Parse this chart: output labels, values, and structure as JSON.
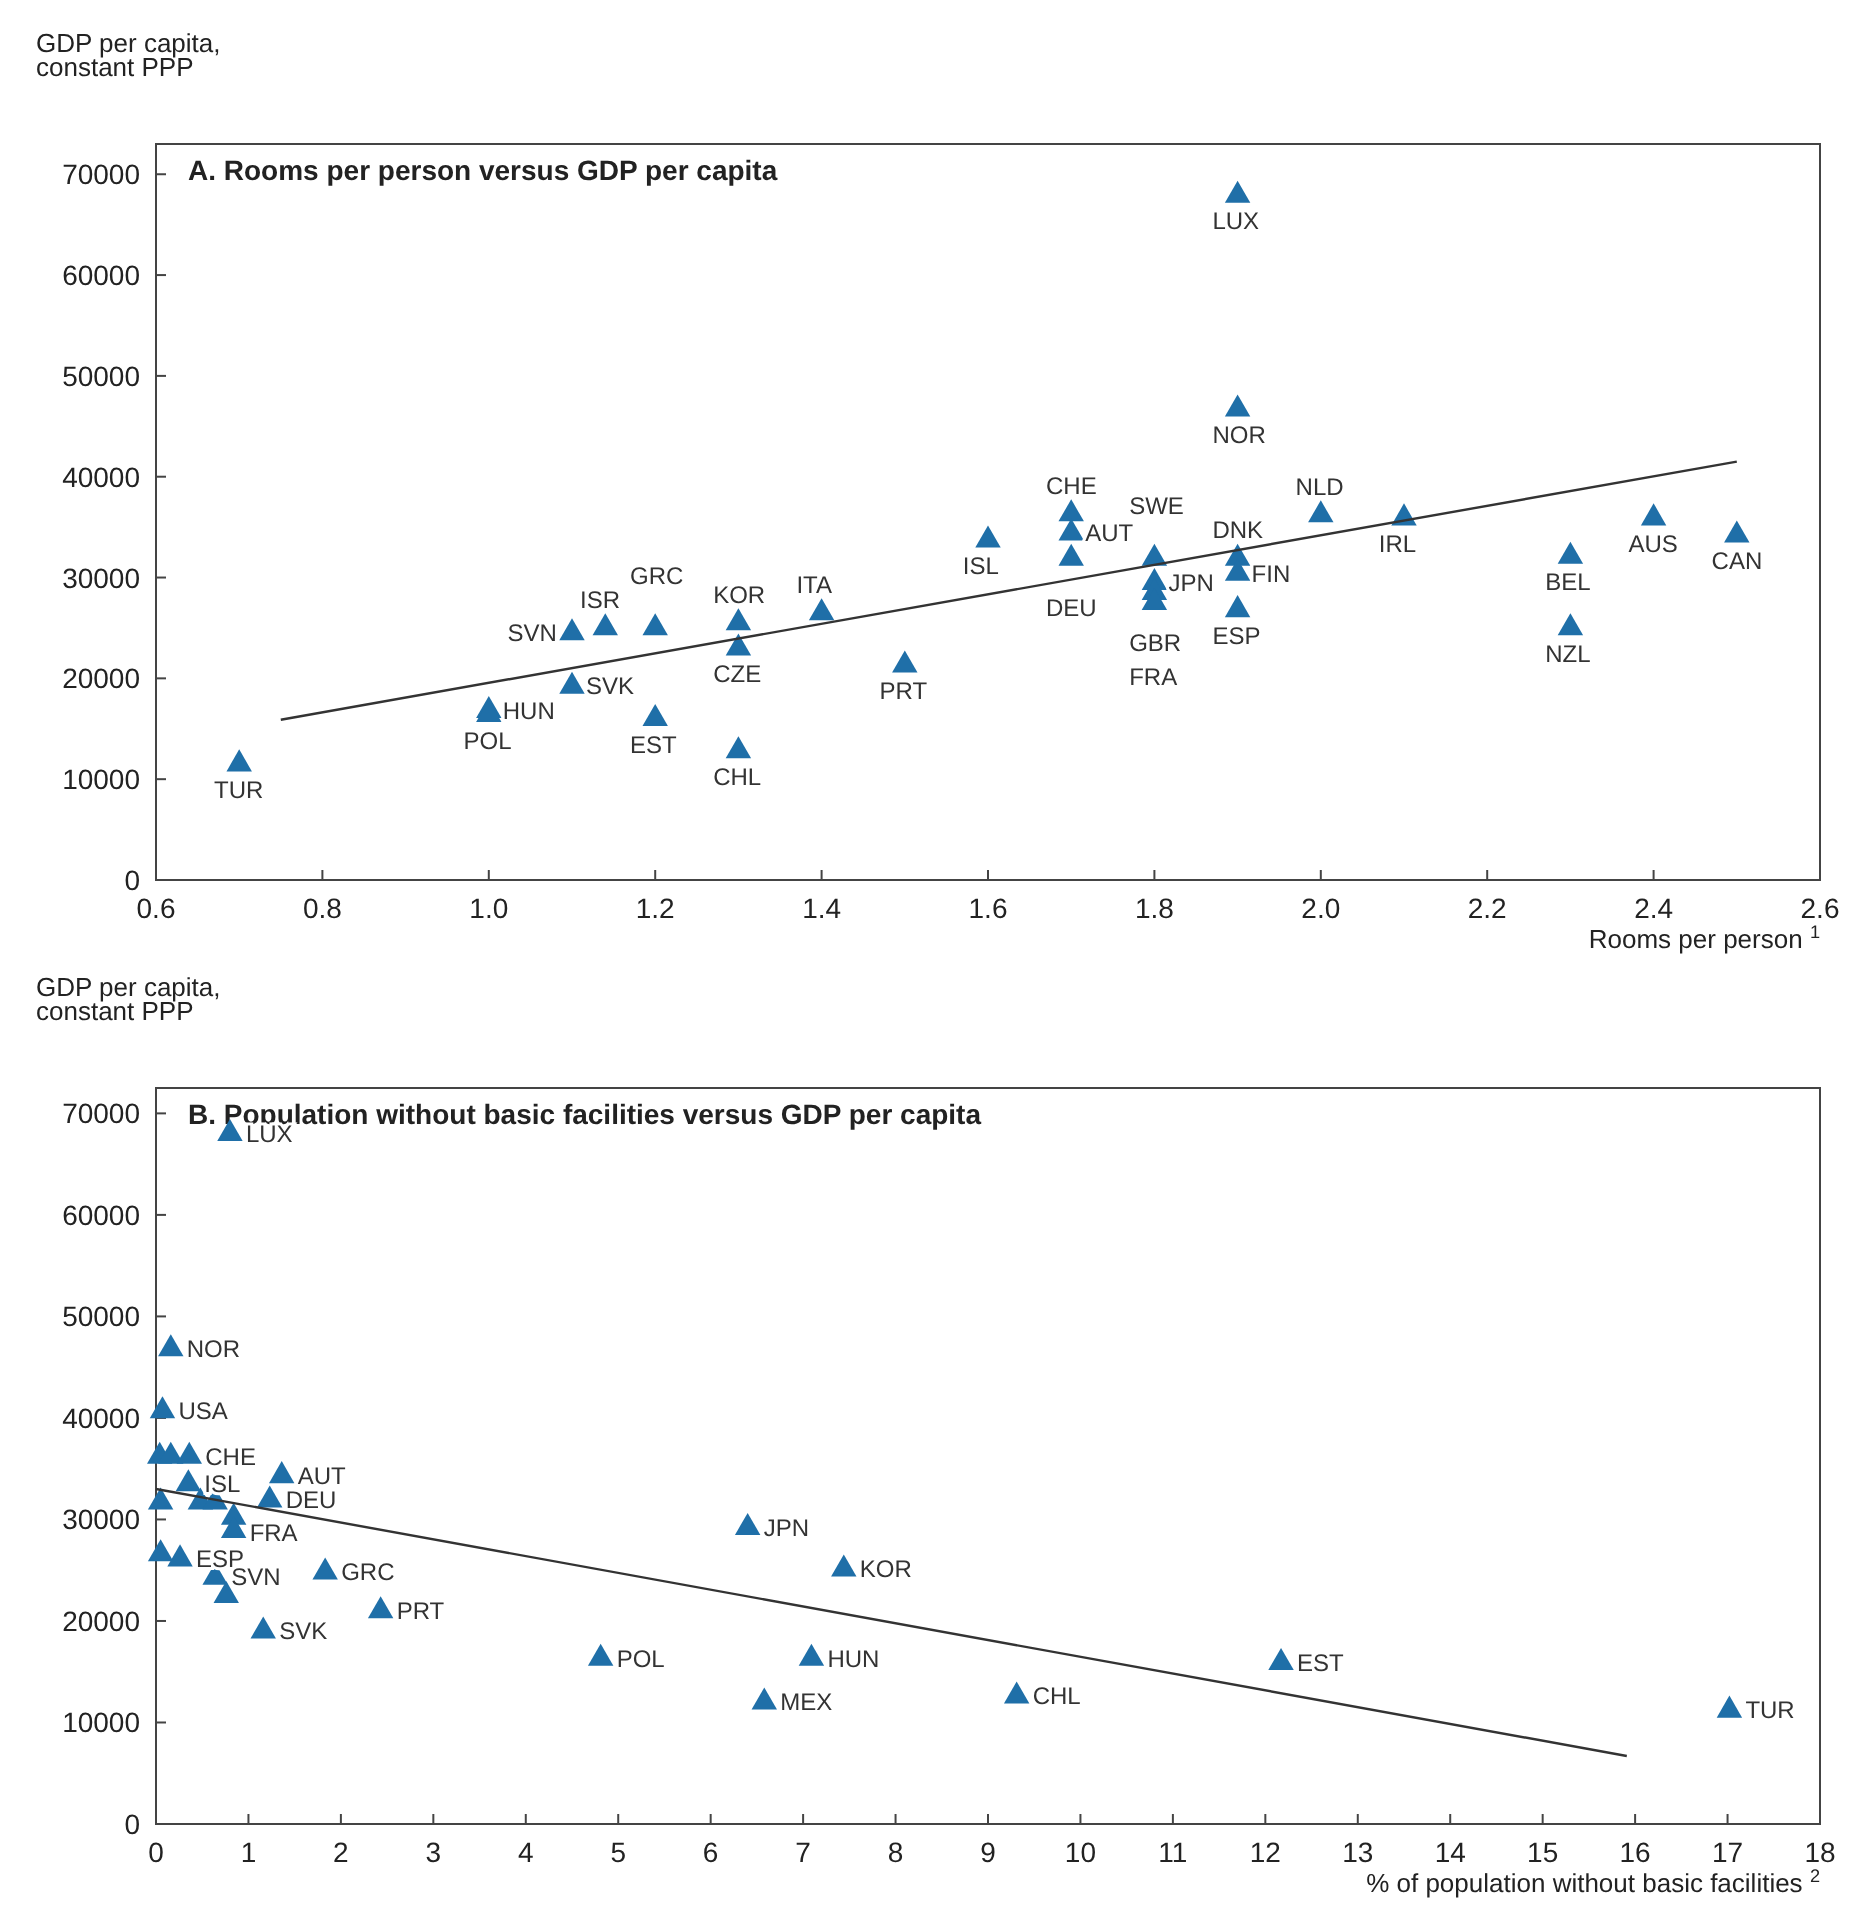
{
  "chart_data": [
    {
      "type": "scatter",
      "title": "A. Rooms per person versus GDP per capita",
      "xlabel": "Rooms per person $^{1}$",
      "ylabel": "GDP per capita,\nconstant PPP",
      "xlim": [
        0.6,
        2.6
      ],
      "xticks": [
        0.6,
        0.8,
        {
          "value": 1,
          "label": "1.0"
        },
        1.2,
        1.4,
        1.6,
        1.8,
        {
          "value": 2,
          "label": "2.0"
        },
        2.2,
        2.4,
        2.6
      ],
      "ylim": [
        0,
        73000
      ],
      "yticks": [
        0,
        10000,
        20000,
        30000,
        40000,
        50000,
        60000,
        70000
      ],
      "grid": false,
      "series": [
        {
          "type": "scatter",
          "color": "#1f6fa8",
          "marker": "triangle",
          "x": [
            0.7,
            1.0,
            1.0,
            1.1,
            1.1,
            1.14,
            1.2,
            1.2,
            1.3,
            1.3,
            1.3,
            1.4,
            1.5,
            1.6,
            1.7,
            1.7,
            1.7,
            1.8,
            1.8,
            1.8,
            1.8,
            1.9,
            1.9,
            1.9,
            1.9,
            1.9,
            2.0,
            2.1,
            2.3,
            2.3,
            2.4,
            2.5
          ],
          "values": [
            11500,
            16800,
            16400,
            24500,
            19200,
            25000,
            25000,
            16000,
            25500,
            23000,
            12800,
            26500,
            21300,
            33700,
            36300,
            34400,
            31900,
            31900,
            29500,
            28500,
            27500,
            67900,
            46700,
            31900,
            30400,
            26800,
            36200,
            35900,
            32100,
            25000,
            35900,
            34200
          ],
          "value_labels": [
            "TUR",
            "HUN",
            "POL",
            "SVN",
            "SVK",
            "ISR",
            "GRC",
            "EST",
            "KOR",
            "CZE",
            "CHL",
            "ITA",
            "PRT",
            "ISL",
            "CHE",
            "AUT",
            "DEU",
            "SWE",
            "JPN",
            "GBR",
            "FRA",
            "LUX",
            "NOR",
            "DNK",
            "FIN",
            "ESP",
            "NLD",
            "IRL",
            "BEL",
            "NZL",
            "AUS",
            "CAN"
          ]
        },
        {
          "type": "line",
          "color": "#333333",
          "marker": "none",
          "line_style": "solid",
          "x": [
            0.75,
            2.5
          ],
          "values": [
            15900,
            41500
          ]
        }
      ]
    },
    {
      "type": "scatter",
      "title": "B. Population without basic facilities versus GDP per capita",
      "xlabel": "% of population without basic facilities $^{2}$",
      "ylabel": "GDP per capita,\nconstant PPP",
      "xlim": [
        0,
        18
      ],
      "xticks": [
        0,
        1,
        2,
        3,
        4,
        5,
        6,
        7,
        8,
        9,
        10,
        11,
        12,
        13,
        14,
        15,
        16,
        17,
        18
      ],
      "ylim": [
        0,
        72500
      ],
      "yticks": [
        0,
        10000,
        20000,
        30000,
        40000,
        50000,
        60000,
        70000
      ],
      "grid": false,
      "series": [
        {
          "type": "scatter",
          "color": "#1f6fa8",
          "marker": "triangle",
          "x": [
            0.8,
            0.16,
            0.07,
            0.04,
            0.16,
            0.36,
            0.35,
            1.36,
            0.05,
            0.48,
            0.64,
            1.23,
            0.84,
            0.84,
            0.05,
            0.26,
            0.64,
            0.76,
            1.83,
            2.43,
            1.16,
            6.4,
            7.44,
            4.81,
            7.09,
            6.58,
            9.31,
            12.17,
            17.02
          ],
          "values": [
            68000,
            46800,
            40700,
            36200,
            36200,
            36200,
            33500,
            34300,
            31700,
            31700,
            31700,
            31900,
            30200,
            28900,
            26600,
            26100,
            24300,
            22500,
            24800,
            21000,
            19000,
            29200,
            25100,
            16300,
            16300,
            12000,
            12600,
            15900,
            11200
          ],
          "value_labels": [
            "LUX",
            "NOR",
            "USA",
            null,
            null,
            "CHE",
            "ISL",
            "AUT",
            null,
            null,
            null,
            "DEU",
            "FRA",
            null,
            null,
            "ESP",
            "SVN",
            null,
            "GRC",
            "PRT",
            "SVK",
            "JPN",
            "KOR",
            "POL",
            "HUN",
            "MEX",
            "CHL",
            "EST",
            "TUR"
          ]
        },
        {
          "type": "line",
          "color": "#333333",
          "marker": "none",
          "line_style": "solid",
          "x": [
            0,
            15.91
          ],
          "values": [
            33000,
            6700
          ]
        }
      ]
    }
  ]
}
